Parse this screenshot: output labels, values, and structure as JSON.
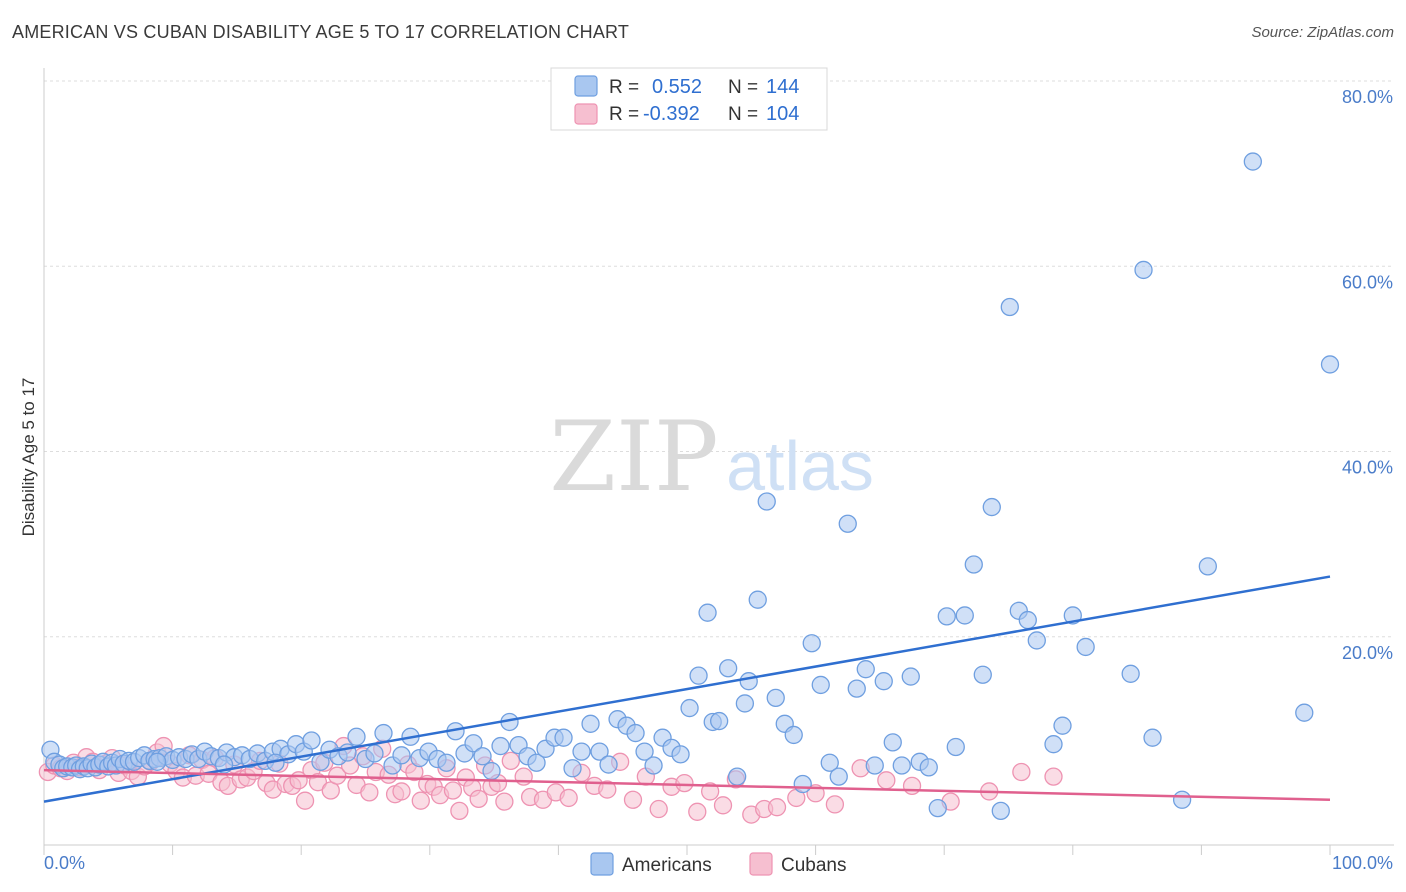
{
  "title": "AMERICAN VS CUBAN DISABILITY AGE 5 TO 17 CORRELATION CHART",
  "source": "Source: ZipAtlas.com",
  "watermark": {
    "zip": "ZIP",
    "atlas": "atlas"
  },
  "colors": {
    "americans_fill": "#a9c7f0",
    "americans_stroke": "#6f9fe0",
    "americans_line": "#2f6fd0",
    "cubans_fill": "#f6bfd0",
    "cubans_stroke": "#ee93b2",
    "cubans_line": "#e0608e",
    "tick_text": "#4a7cc9",
    "grid": "#dddddd"
  },
  "legend": {
    "r_label": "R =",
    "n_label": "N =",
    "americans": {
      "r": "0.552",
      "n": "144"
    },
    "cubans": {
      "r": "-0.392",
      "n": "104"
    }
  },
  "chart_data": {
    "type": "scatter",
    "title": "AMERICAN VS CUBAN DISABILITY AGE 5 TO 17 CORRELATION CHART",
    "xlabel": "",
    "ylabel": "Disability Age 5 to 17",
    "xlim": [
      0,
      100
    ],
    "ylim": [
      0,
      80
    ],
    "x_tick_labels": [
      "0.0%",
      "100.0%"
    ],
    "y_ticks": [
      20,
      40,
      60,
      80
    ],
    "y_tick_labels": [
      "20.0%",
      "40.0%",
      "60.0%",
      "80.0%"
    ],
    "grid": true,
    "legend_position": "top-center",
    "series": [
      {
        "name": "Americans",
        "r": 0.552,
        "n": 144,
        "trend": {
          "x": [
            0,
            100
          ],
          "y": [
            2.2,
            26.5
          ]
        },
        "points": [
          [
            0.5,
            7.8
          ],
          [
            0.8,
            6.5
          ],
          [
            1.2,
            6.2
          ],
          [
            1.5,
            5.8
          ],
          [
            1.8,
            6.0
          ],
          [
            2.2,
            5.9
          ],
          [
            2.5,
            6.1
          ],
          [
            2.8,
            5.7
          ],
          [
            3.1,
            6.0
          ],
          [
            3.4,
            5.8
          ],
          [
            3.7,
            6.3
          ],
          [
            4.0,
            5.9
          ],
          [
            4.3,
            6.2
          ],
          [
            4.6,
            6.5
          ],
          [
            5.0,
            6.0
          ],
          [
            5.3,
            6.4
          ],
          [
            5.6,
            6.1
          ],
          [
            5.9,
            6.8
          ],
          [
            6.2,
            6.3
          ],
          [
            6.6,
            6.6
          ],
          [
            7.0,
            6.5
          ],
          [
            7.4,
            6.9
          ],
          [
            7.8,
            7.2
          ],
          [
            8.2,
            6.6
          ],
          [
            8.6,
            6.8
          ],
          [
            9.0,
            6.9
          ],
          [
            9.5,
            7.1
          ],
          [
            10.0,
            6.7
          ],
          [
            10.5,
            7.0
          ],
          [
            11.0,
            6.8
          ],
          [
            11.5,
            7.3
          ],
          [
            12.0,
            6.8
          ],
          [
            12.5,
            7.6
          ],
          [
            13.0,
            7.1
          ],
          [
            13.6,
            6.9
          ],
          [
            14.2,
            7.5
          ],
          [
            14.8,
            7.0
          ],
          [
            15.4,
            7.2
          ],
          [
            16.0,
            6.8
          ],
          [
            16.6,
            7.4
          ],
          [
            17.2,
            6.6
          ],
          [
            17.8,
            7.6
          ],
          [
            18.4,
            7.9
          ],
          [
            19.0,
            7.3
          ],
          [
            19.6,
            8.4
          ],
          [
            20.2,
            7.6
          ],
          [
            20.8,
            8.8
          ],
          [
            21.5,
            6.5
          ],
          [
            22.2,
            7.8
          ],
          [
            22.9,
            7.1
          ],
          [
            23.6,
            7.5
          ],
          [
            24.3,
            9.2
          ],
          [
            25.0,
            6.8
          ],
          [
            25.7,
            7.4
          ],
          [
            26.4,
            9.6
          ],
          [
            27.1,
            6.1
          ],
          [
            27.8,
            7.2
          ],
          [
            28.5,
            9.2
          ],
          [
            29.2,
            6.9
          ],
          [
            29.9,
            7.6
          ],
          [
            30.6,
            6.8
          ],
          [
            31.3,
            6.4
          ],
          [
            32.0,
            9.8
          ],
          [
            32.7,
            7.4
          ],
          [
            33.4,
            8.5
          ],
          [
            34.1,
            7.1
          ],
          [
            34.8,
            5.5
          ],
          [
            35.5,
            8.2
          ],
          [
            36.2,
            10.8
          ],
          [
            36.9,
            8.3
          ],
          [
            37.6,
            7.1
          ],
          [
            38.3,
            6.4
          ],
          [
            39.0,
            7.9
          ],
          [
            39.7,
            9.1
          ],
          [
            40.4,
            9.1
          ],
          [
            41.1,
            5.8
          ],
          [
            41.8,
            7.6
          ],
          [
            42.5,
            10.6
          ],
          [
            43.2,
            7.6
          ],
          [
            43.9,
            6.2
          ],
          [
            44.6,
            11.1
          ],
          [
            45.3,
            10.4
          ],
          [
            46.0,
            9.6
          ],
          [
            46.7,
            7.6
          ],
          [
            47.4,
            6.1
          ],
          [
            48.1,
            9.1
          ],
          [
            48.8,
            8.0
          ],
          [
            49.5,
            7.3
          ],
          [
            50.2,
            12.3
          ],
          [
            50.9,
            15.8
          ],
          [
            51.6,
            22.6
          ],
          [
            52.0,
            10.8
          ],
          [
            52.5,
            10.9
          ],
          [
            53.2,
            16.6
          ],
          [
            53.9,
            4.9
          ],
          [
            54.5,
            12.8
          ],
          [
            54.8,
            15.2
          ],
          [
            55.5,
            24.0
          ],
          [
            56.2,
            34.6
          ],
          [
            56.9,
            13.4
          ],
          [
            57.6,
            10.6
          ],
          [
            58.3,
            9.4
          ],
          [
            59.0,
            4.1
          ],
          [
            59.7,
            19.3
          ],
          [
            60.4,
            14.8
          ],
          [
            61.1,
            6.4
          ],
          [
            61.8,
            4.9
          ],
          [
            62.5,
            32.2
          ],
          [
            63.2,
            14.4
          ],
          [
            63.9,
            16.5
          ],
          [
            64.6,
            6.1
          ],
          [
            65.3,
            15.2
          ],
          [
            66.0,
            8.6
          ],
          [
            66.7,
            6.1
          ],
          [
            67.4,
            15.7
          ],
          [
            68.1,
            6.5
          ],
          [
            68.8,
            5.9
          ],
          [
            69.5,
            1.5
          ],
          [
            70.2,
            22.2
          ],
          [
            70.9,
            8.1
          ],
          [
            71.6,
            22.3
          ],
          [
            72.3,
            27.8
          ],
          [
            73.0,
            15.9
          ],
          [
            73.7,
            34.0
          ],
          [
            74.4,
            1.2
          ],
          [
            75.1,
            55.6
          ],
          [
            75.8,
            22.8
          ],
          [
            76.5,
            21.8
          ],
          [
            77.2,
            19.6
          ],
          [
            78.5,
            8.4
          ],
          [
            79.2,
            10.4
          ],
          [
            80.0,
            22.3
          ],
          [
            81.0,
            18.9
          ],
          [
            84.5,
            16.0
          ],
          [
            85.5,
            59.6
          ],
          [
            86.2,
            9.1
          ],
          [
            88.5,
            2.4
          ],
          [
            90.5,
            27.6
          ],
          [
            94.0,
            71.3
          ],
          [
            98.0,
            11.8
          ],
          [
            100.0,
            49.4
          ],
          [
            8.8,
            6.5
          ],
          [
            14.0,
            6.2
          ],
          [
            18.0,
            6.4
          ]
        ]
      },
      {
        "name": "Cubans",
        "r": -0.392,
        "n": 104,
        "trend": {
          "x": [
            0,
            100
          ],
          "y": [
            5.6,
            2.4
          ]
        },
        "points": [
          [
            0.3,
            5.4
          ],
          [
            0.8,
            6.1
          ],
          [
            1.3,
            5.8
          ],
          [
            1.8,
            5.5
          ],
          [
            2.3,
            6.4
          ],
          [
            2.8,
            5.9
          ],
          [
            3.3,
            7.0
          ],
          [
            3.8,
            6.5
          ],
          [
            4.3,
            5.6
          ],
          [
            4.8,
            6.3
          ],
          [
            5.3,
            6.9
          ],
          [
            5.8,
            5.3
          ],
          [
            6.3,
            6.1
          ],
          [
            6.8,
            5.5
          ],
          [
            7.3,
            4.9
          ],
          [
            7.8,
            6.0
          ],
          [
            8.3,
            6.5
          ],
          [
            8.8,
            7.5
          ],
          [
            9.3,
            8.2
          ],
          [
            9.8,
            6.3
          ],
          [
            10.3,
            5.5
          ],
          [
            10.8,
            4.8
          ],
          [
            11.3,
            7.2
          ],
          [
            11.8,
            5.0
          ],
          [
            12.3,
            6.7
          ],
          [
            12.8,
            5.2
          ],
          [
            13.3,
            6.9
          ],
          [
            13.8,
            4.3
          ],
          [
            14.3,
            3.9
          ],
          [
            14.8,
            6.2
          ],
          [
            15.3,
            4.6
          ],
          [
            15.8,
            4.8
          ],
          [
            16.3,
            5.5
          ],
          [
            16.8,
            6.6
          ],
          [
            17.3,
            4.2
          ],
          [
            17.8,
            3.5
          ],
          [
            18.3,
            6.3
          ],
          [
            18.8,
            4.1
          ],
          [
            19.3,
            3.9
          ],
          [
            19.8,
            4.5
          ],
          [
            20.3,
            2.3
          ],
          [
            20.8,
            5.6
          ],
          [
            21.3,
            4.3
          ],
          [
            21.8,
            6.4
          ],
          [
            22.3,
            3.4
          ],
          [
            22.8,
            5.0
          ],
          [
            23.3,
            8.2
          ],
          [
            23.8,
            6.1
          ],
          [
            24.3,
            4.0
          ],
          [
            24.8,
            7.1
          ],
          [
            25.3,
            3.2
          ],
          [
            25.8,
            5.4
          ],
          [
            26.3,
            7.9
          ],
          [
            26.8,
            5.1
          ],
          [
            27.3,
            3.0
          ],
          [
            27.8,
            3.3
          ],
          [
            28.3,
            6.2
          ],
          [
            28.8,
            5.4
          ],
          [
            29.3,
            2.3
          ],
          [
            29.8,
            4.1
          ],
          [
            30.3,
            3.8
          ],
          [
            30.8,
            2.9
          ],
          [
            31.3,
            5.8
          ],
          [
            31.8,
            3.4
          ],
          [
            32.3,
            1.2
          ],
          [
            32.8,
            4.8
          ],
          [
            33.3,
            3.7
          ],
          [
            33.8,
            2.5
          ],
          [
            34.3,
            6.1
          ],
          [
            34.8,
            3.8
          ],
          [
            35.3,
            4.2
          ],
          [
            35.8,
            2.2
          ],
          [
            36.3,
            6.6
          ],
          [
            37.3,
            4.9
          ],
          [
            37.8,
            2.7
          ],
          [
            38.8,
            2.4
          ],
          [
            39.8,
            3.2
          ],
          [
            40.8,
            2.6
          ],
          [
            41.8,
            5.3
          ],
          [
            42.8,
            3.9
          ],
          [
            43.8,
            3.5
          ],
          [
            44.8,
            6.5
          ],
          [
            45.8,
            2.4
          ],
          [
            46.8,
            4.9
          ],
          [
            47.8,
            1.4
          ],
          [
            48.8,
            3.8
          ],
          [
            49.8,
            4.2
          ],
          [
            50.8,
            1.1
          ],
          [
            51.8,
            3.3
          ],
          [
            52.8,
            1.8
          ],
          [
            53.8,
            4.6
          ],
          [
            55.0,
            0.8
          ],
          [
            56.0,
            1.4
          ],
          [
            57.0,
            1.6
          ],
          [
            58.5,
            2.6
          ],
          [
            60.0,
            3.1
          ],
          [
            61.5,
            1.9
          ],
          [
            63.5,
            5.8
          ],
          [
            65.5,
            4.5
          ],
          [
            67.5,
            3.9
          ],
          [
            70.5,
            2.2
          ],
          [
            73.5,
            3.3
          ],
          [
            76.0,
            5.4
          ],
          [
            78.5,
            4.9
          ]
        ]
      }
    ]
  },
  "bottom_legend": {
    "americans": "Americans",
    "cubans": "Cubans"
  }
}
